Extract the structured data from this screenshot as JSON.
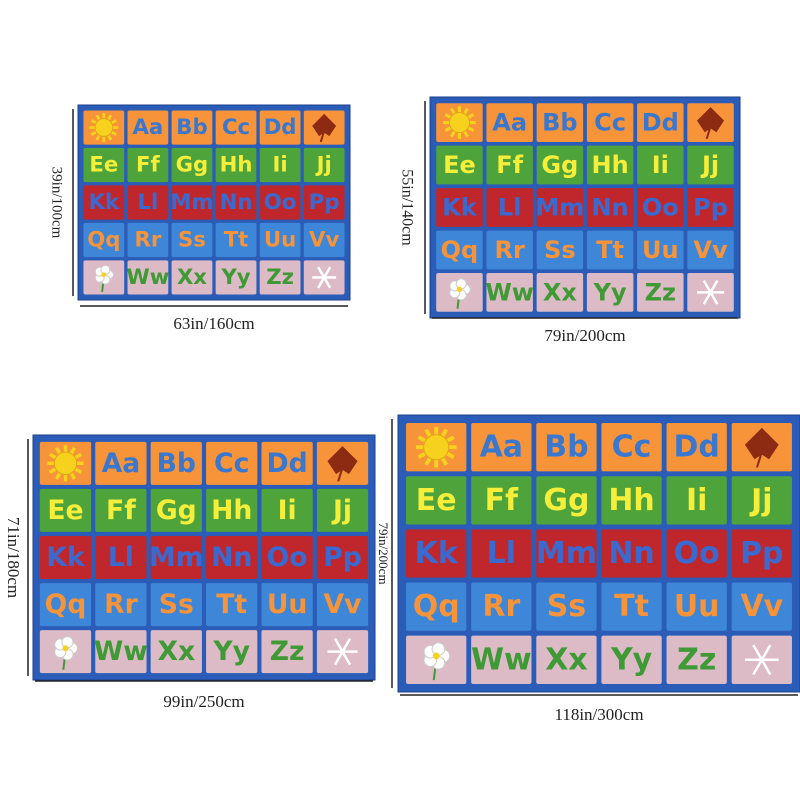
{
  "rugs": [
    {
      "height_label": "39in/100cm",
      "width_label": "63in/160cm"
    },
    {
      "height_label": "55in/140cm",
      "width_label": "79in/200cm"
    },
    {
      "height_label": "71in/180cm",
      "width_label": "99in/250cm"
    },
    {
      "height_label": "79in/200cm",
      "width_label": "118in/300cm"
    }
  ],
  "letters": {
    "rows": [
      [
        "Aa",
        "Bb",
        "Cc",
        "Dd"
      ],
      [
        "Ee",
        "Ff",
        "Gg",
        "Hh",
        "Ii",
        "Jj"
      ],
      [
        "Kk",
        "Ll",
        "Mm",
        "Nn",
        "Oo",
        "Pp"
      ],
      [
        "Qq",
        "Rr",
        "Ss",
        "Tt",
        "Uu",
        "Vv"
      ],
      [
        "Ww",
        "Xx",
        "Yy",
        "Zz"
      ]
    ]
  }
}
